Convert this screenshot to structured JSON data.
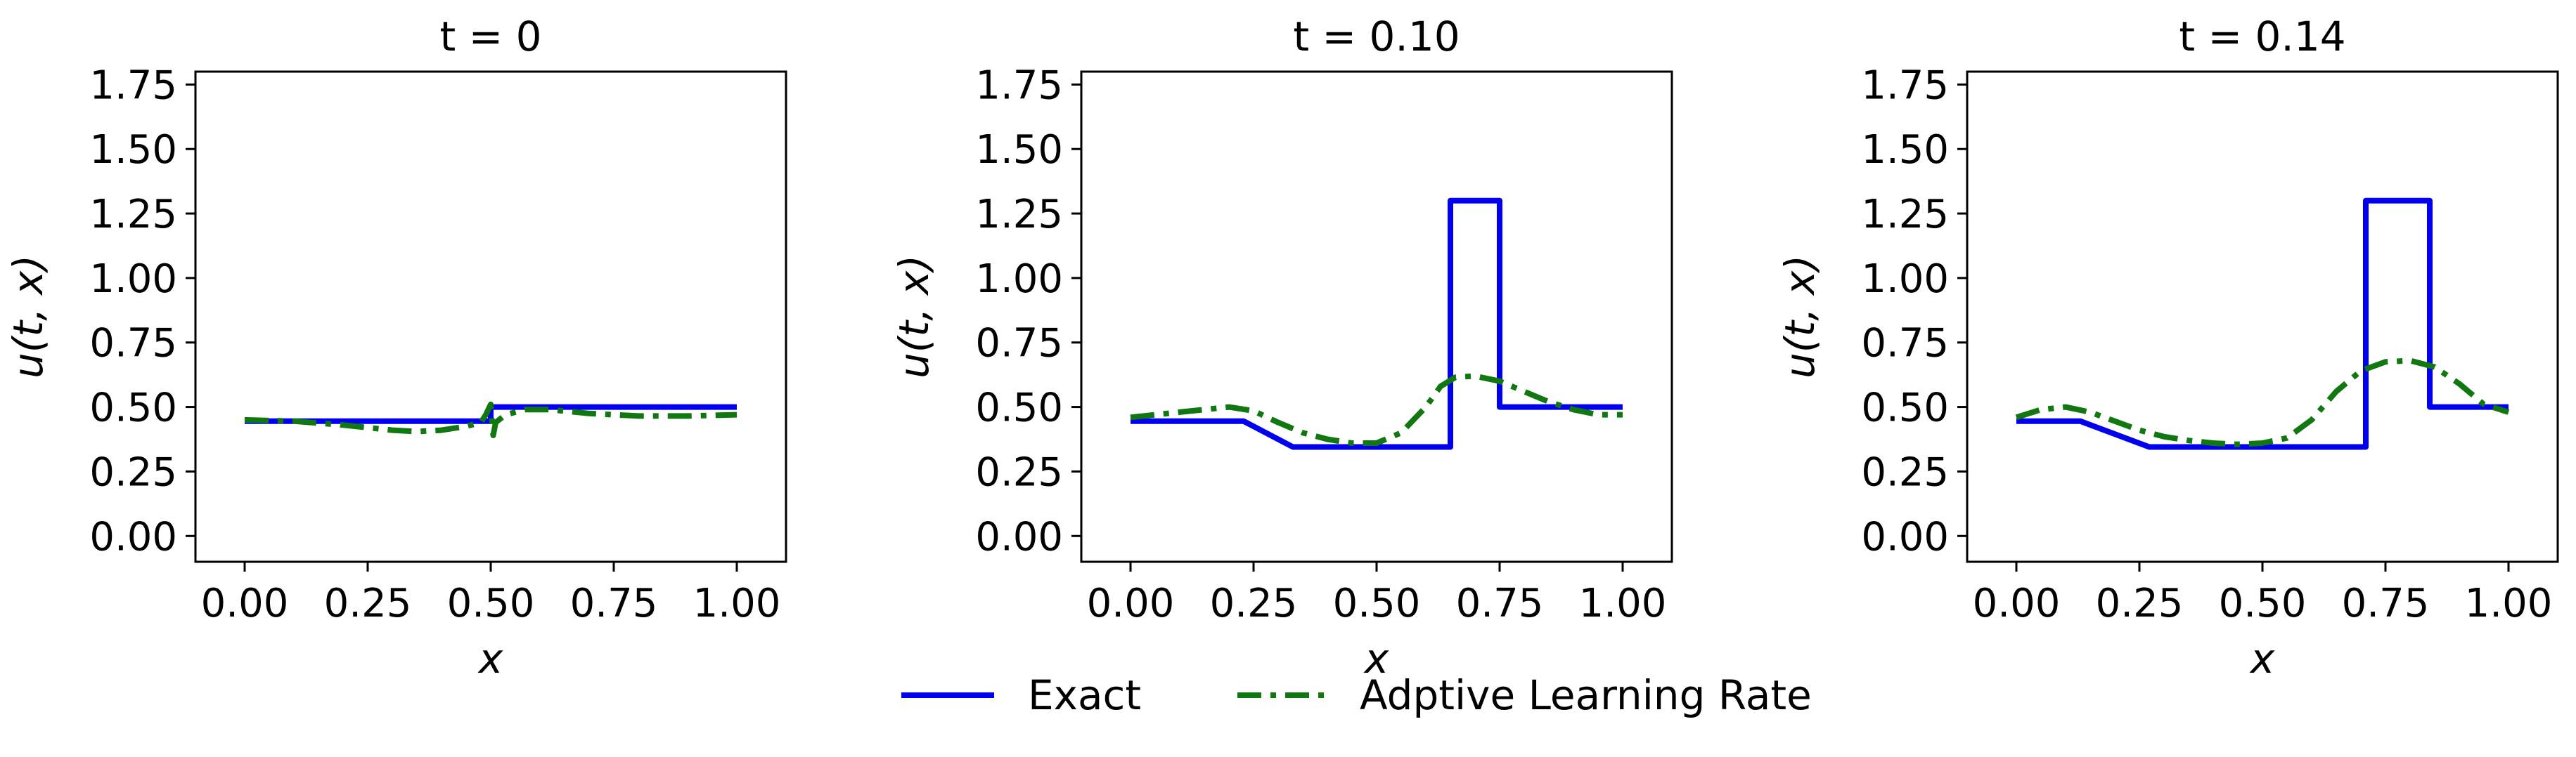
{
  "colors": {
    "exact": "#0000ee",
    "adaptive": "#117711",
    "axes": "#000000",
    "background": "#ffffff"
  },
  "legend": {
    "placement": "bottom-center",
    "entries": [
      "Exact",
      "Adptive Learning Rate"
    ]
  },
  "chart_data": [
    {
      "type": "line",
      "title": "t = 0",
      "xlabel": "x",
      "ylabel": "u(t, x)",
      "xlim": [
        -0.1,
        1.1
      ],
      "ylim": [
        -0.1,
        1.8
      ],
      "xticks": [
        "0.00",
        "0.25",
        "0.50",
        "0.75",
        "1.00"
      ],
      "yticks": [
        "0.00",
        "0.25",
        "0.50",
        "0.75",
        "1.00",
        "1.25",
        "1.50",
        "1.75"
      ],
      "grid": false,
      "series": [
        {
          "name": "Exact",
          "style": "solid",
          "x": [
            0.0,
            0.5,
            0.5,
            1.0
          ],
          "y": [
            0.445,
            0.445,
            0.5,
            0.5
          ]
        },
        {
          "name": "Adptive Learning Rate",
          "style": "dashdot",
          "x": [
            0.0,
            0.1,
            0.2,
            0.3,
            0.35,
            0.4,
            0.45,
            0.48,
            0.49,
            0.5,
            0.505,
            0.51,
            0.53,
            0.57,
            0.62,
            0.7,
            0.8,
            0.9,
            1.0
          ],
          "y": [
            0.45,
            0.445,
            0.43,
            0.41,
            0.405,
            0.41,
            0.425,
            0.44,
            0.47,
            0.51,
            0.39,
            0.44,
            0.47,
            0.49,
            0.49,
            0.475,
            0.465,
            0.465,
            0.47
          ]
        }
      ]
    },
    {
      "type": "line",
      "title": "t = 0.10",
      "xlabel": "x",
      "ylabel": "u(t, x)",
      "xlim": [
        -0.1,
        1.1
      ],
      "ylim": [
        -0.1,
        1.8
      ],
      "xticks": [
        "0.00",
        "0.25",
        "0.50",
        "0.75",
        "1.00"
      ],
      "yticks": [
        "0.00",
        "0.25",
        "0.50",
        "0.75",
        "1.00",
        "1.25",
        "1.50",
        "1.75"
      ],
      "grid": false,
      "series": [
        {
          "name": "Exact",
          "style": "solid",
          "x": [
            0.0,
            0.23,
            0.33,
            0.65,
            0.65,
            0.75,
            0.75,
            1.0
          ],
          "y": [
            0.445,
            0.445,
            0.345,
            0.345,
            1.3,
            1.3,
            0.5,
            0.5
          ]
        },
        {
          "name": "Adptive Learning Rate",
          "style": "dashdot",
          "x": [
            0.0,
            0.1,
            0.2,
            0.25,
            0.3,
            0.35,
            0.4,
            0.45,
            0.5,
            0.55,
            0.6,
            0.63,
            0.66,
            0.7,
            0.75,
            0.8,
            0.85,
            0.9,
            0.95,
            1.0
          ],
          "y": [
            0.46,
            0.48,
            0.5,
            0.485,
            0.44,
            0.4,
            0.375,
            0.36,
            0.36,
            0.4,
            0.5,
            0.58,
            0.615,
            0.62,
            0.6,
            0.56,
            0.52,
            0.49,
            0.47,
            0.47
          ]
        }
      ]
    },
    {
      "type": "line",
      "title": "t = 0.14",
      "xlabel": "x",
      "ylabel": "u(t, x)",
      "xlim": [
        -0.1,
        1.1
      ],
      "ylim": [
        -0.1,
        1.8
      ],
      "xticks": [
        "0.00",
        "0.25",
        "0.50",
        "0.75",
        "1.00"
      ],
      "yticks": [
        "0.00",
        "0.25",
        "0.50",
        "0.75",
        "1.00",
        "1.25",
        "1.50",
        "1.75"
      ],
      "grid": false,
      "series": [
        {
          "name": "Exact",
          "style": "solid",
          "x": [
            0.0,
            0.13,
            0.27,
            0.71,
            0.71,
            0.84,
            0.84,
            1.0
          ],
          "y": [
            0.445,
            0.445,
            0.345,
            0.345,
            1.3,
            1.3,
            0.5,
            0.5
          ]
        },
        {
          "name": "Adptive Learning Rate",
          "style": "dashdot",
          "x": [
            0.0,
            0.05,
            0.1,
            0.15,
            0.2,
            0.25,
            0.3,
            0.35,
            0.4,
            0.45,
            0.5,
            0.55,
            0.6,
            0.65,
            0.7,
            0.75,
            0.8,
            0.85,
            0.9,
            0.95,
            1.0
          ],
          "y": [
            0.46,
            0.49,
            0.5,
            0.48,
            0.445,
            0.41,
            0.385,
            0.37,
            0.36,
            0.355,
            0.36,
            0.38,
            0.45,
            0.56,
            0.64,
            0.675,
            0.68,
            0.655,
            0.59,
            0.51,
            0.48
          ]
        }
      ]
    }
  ]
}
